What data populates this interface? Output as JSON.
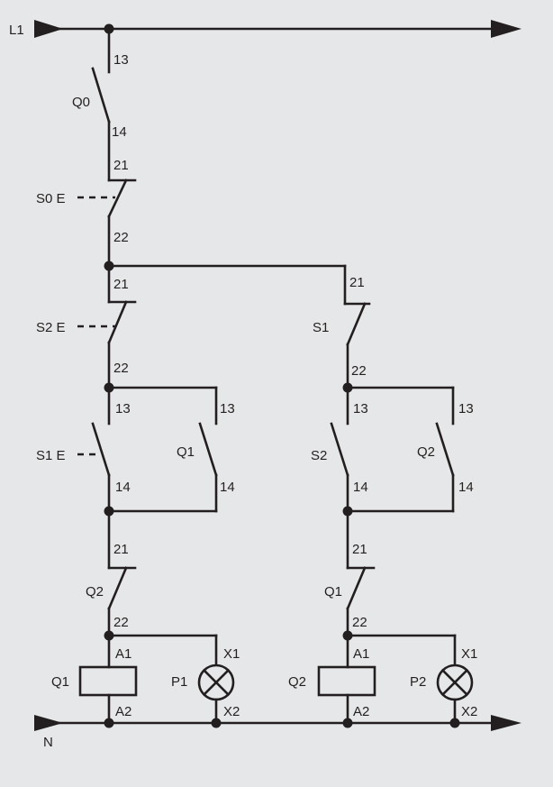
{
  "colors": {
    "background": "#e6e7e8",
    "ink": "#231f20"
  },
  "rails": {
    "top": "L1",
    "bottom": "N"
  },
  "q0": {
    "name": "Q0",
    "t_in": "13",
    "t_out": "14"
  },
  "s0": {
    "name": "S0 E",
    "t_in": "21",
    "t_out": "22"
  },
  "s2_nc": {
    "name": "S2 E",
    "t_in": "21",
    "t_out": "22"
  },
  "s1_nc": {
    "name": "S1",
    "t_in": "21",
    "t_out": "22"
  },
  "s1_no": {
    "name": "S1 E",
    "t_in": "13",
    "t_out": "14"
  },
  "q1_no": {
    "name": "Q1",
    "t_in": "13",
    "t_out": "14"
  },
  "s2_no": {
    "name": "S2",
    "t_in": "13",
    "t_out": "14"
  },
  "q2_no": {
    "name": "Q2",
    "t_in": "13",
    "t_out": "14"
  },
  "q2_nc": {
    "name": "Q2",
    "t_in": "21",
    "t_out": "22"
  },
  "q1_nc": {
    "name": "Q1",
    "t_in": "21",
    "t_out": "22"
  },
  "coil_q1": {
    "name": "Q1",
    "t_in": "A1",
    "t_out": "A2"
  },
  "coil_q2": {
    "name": "Q2",
    "t_in": "A1",
    "t_out": "A2"
  },
  "lamp_p1": {
    "name": "P1",
    "t_in": "X1",
    "t_out": "X2",
    "icon": "lamp-icon"
  },
  "lamp_p2": {
    "name": "P2",
    "t_in": "X1",
    "t_out": "X2",
    "icon": "lamp-icon"
  }
}
